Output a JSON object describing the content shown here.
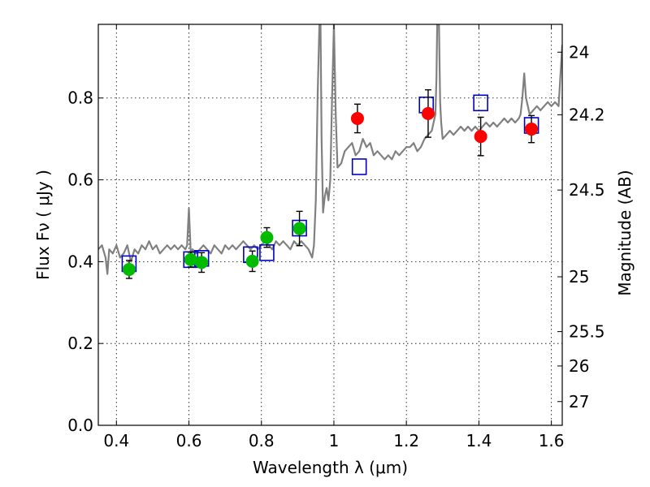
{
  "chart_data": {
    "type": "scatter",
    "xlabel": "Wavelength  λ (μm)",
    "ylabel": "Flux  Fν ( μJy )",
    "y2label": "Magnitude (AB)",
    "xlim": [
      0.35,
      1.63
    ],
    "ylim": [
      0.0,
      0.98
    ],
    "grid": true,
    "x_ticks": [
      "0.4",
      "0.6",
      "0.8",
      "1",
      "1.2",
      "1.4",
      "1.6"
    ],
    "x_tick_values": [
      0.4,
      0.6,
      0.8,
      1.0,
      1.2,
      1.4,
      1.6
    ],
    "y_ticks": [
      "0.0",
      "0.2",
      "0.4",
      "0.6",
      "0.8"
    ],
    "y_tick_values": [
      0.0,
      0.2,
      0.4,
      0.6,
      0.8
    ],
    "y2_ticks": [
      {
        "label": "24",
        "flux": 0.912
      },
      {
        "label": "24.2",
        "flux": 0.759
      },
      {
        "label": "24.5",
        "flux": 0.575
      },
      {
        "label": "25",
        "flux": 0.363
      },
      {
        "label": "25.5",
        "flux": 0.229
      },
      {
        "label": "26",
        "flux": 0.145
      },
      {
        "label": "27",
        "flux": 0.058
      }
    ],
    "colors": {
      "model_line": "#808080",
      "green_points": "#00bb00",
      "red_points": "#ff0000",
      "model_squares": "#0000cc",
      "error_bars": "#000000"
    },
    "series": [
      {
        "kind": "line",
        "color": "#808080",
        "x": [
          0.35,
          0.36,
          0.37,
          0.375,
          0.38,
          0.39,
          0.4,
          0.41,
          0.42,
          0.43,
          0.44,
          0.45,
          0.46,
          0.47,
          0.48,
          0.49,
          0.5,
          0.51,
          0.52,
          0.53,
          0.54,
          0.55,
          0.56,
          0.57,
          0.58,
          0.59,
          0.595,
          0.6,
          0.605,
          0.61,
          0.62,
          0.63,
          0.64,
          0.65,
          0.66,
          0.67,
          0.68,
          0.69,
          0.7,
          0.71,
          0.72,
          0.73,
          0.74,
          0.75,
          0.76,
          0.77,
          0.78,
          0.79,
          0.8,
          0.81,
          0.82,
          0.83,
          0.84,
          0.85,
          0.86,
          0.87,
          0.88,
          0.89,
          0.9,
          0.91,
          0.92,
          0.93,
          0.94,
          0.945,
          0.95,
          0.955,
          0.96,
          0.963,
          0.966,
          0.97,
          0.975,
          0.98,
          0.985,
          0.99,
          0.995,
          1.0,
          1.005,
          1.01,
          1.02,
          1.03,
          1.04,
          1.05,
          1.06,
          1.07,
          1.08,
          1.09,
          1.1,
          1.11,
          1.12,
          1.13,
          1.14,
          1.15,
          1.16,
          1.17,
          1.18,
          1.19,
          1.2,
          1.21,
          1.22,
          1.23,
          1.24,
          1.25,
          1.26,
          1.27,
          1.28,
          1.283,
          1.285,
          1.29,
          1.293,
          1.296,
          1.3,
          1.31,
          1.32,
          1.33,
          1.34,
          1.35,
          1.36,
          1.37,
          1.38,
          1.39,
          1.4,
          1.41,
          1.42,
          1.43,
          1.44,
          1.45,
          1.46,
          1.47,
          1.48,
          1.49,
          1.5,
          1.51,
          1.515,
          1.52,
          1.525,
          1.53,
          1.54,
          1.55,
          1.56,
          1.57,
          1.58,
          1.59,
          1.6,
          1.61,
          1.62,
          1.63
        ],
        "y": [
          0.43,
          0.44,
          0.41,
          0.37,
          0.43,
          0.42,
          0.44,
          0.41,
          0.42,
          0.44,
          0.4,
          0.43,
          0.42,
          0.44,
          0.43,
          0.45,
          0.43,
          0.44,
          0.42,
          0.43,
          0.44,
          0.43,
          0.44,
          0.43,
          0.44,
          0.43,
          0.44,
          0.53,
          0.42,
          0.43,
          0.42,
          0.43,
          0.44,
          0.43,
          0.42,
          0.44,
          0.43,
          0.42,
          0.44,
          0.43,
          0.44,
          0.43,
          0.44,
          0.45,
          0.44,
          0.43,
          0.44,
          0.43,
          0.44,
          0.45,
          0.44,
          0.43,
          0.45,
          0.44,
          0.45,
          0.44,
          0.43,
          0.45,
          0.44,
          0.45,
          0.44,
          0.43,
          0.41,
          0.44,
          0.55,
          0.8,
          0.98,
          0.98,
          0.7,
          0.52,
          0.56,
          0.58,
          0.55,
          0.6,
          0.8,
          0.98,
          0.76,
          0.63,
          0.64,
          0.67,
          0.68,
          0.69,
          0.66,
          0.67,
          0.7,
          0.68,
          0.69,
          0.66,
          0.67,
          0.66,
          0.65,
          0.66,
          0.65,
          0.67,
          0.66,
          0.67,
          0.68,
          0.68,
          0.69,
          0.67,
          0.68,
          0.7,
          0.71,
          0.72,
          0.76,
          0.85,
          0.98,
          0.98,
          0.79,
          0.74,
          0.7,
          0.71,
          0.72,
          0.71,
          0.72,
          0.73,
          0.72,
          0.73,
          0.72,
          0.73,
          0.72,
          0.73,
          0.74,
          0.73,
          0.74,
          0.73,
          0.74,
          0.75,
          0.74,
          0.75,
          0.74,
          0.75,
          0.76,
          0.8,
          0.86,
          0.8,
          0.76,
          0.77,
          0.78,
          0.77,
          0.78,
          0.79,
          0.78,
          0.79,
          0.78,
          0.93
        ]
      },
      {
        "kind": "points_errorbar",
        "color": "#00bb00",
        "x": [
          0.435,
          0.605,
          0.635,
          0.775,
          0.815,
          0.905
        ],
        "y": [
          0.381,
          0.405,
          0.398,
          0.401,
          0.459,
          0.481
        ],
        "err": [
          0.022,
          0.018,
          0.024,
          0.025,
          0.024,
          0.042
        ]
      },
      {
        "kind": "points_errorbar",
        "color": "#ff0000",
        "x": [
          1.065,
          1.26,
          1.405,
          1.545
        ],
        "y": [
          0.75,
          0.762,
          0.706,
          0.724
        ],
        "err": [
          0.035,
          0.058,
          0.047,
          0.033
        ]
      },
      {
        "kind": "open_squares",
        "color": "#0000cc",
        "x": [
          0.435,
          0.605,
          0.635,
          0.77,
          0.815,
          0.905,
          1.07,
          1.255,
          1.405,
          1.545
        ],
        "y": [
          0.395,
          0.405,
          0.408,
          0.417,
          0.422,
          0.482,
          0.632,
          0.783,
          0.788,
          0.733
        ]
      }
    ]
  }
}
